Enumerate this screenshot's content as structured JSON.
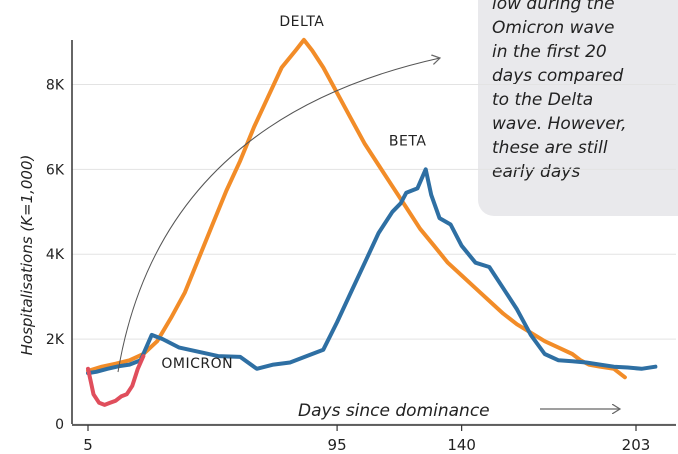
{
  "chart_data": {
    "type": "line",
    "ylabel": "Hospitalisations (K=1,000)",
    "xlabel": "Days since dominance",
    "ylim": [
      0,
      9000
    ],
    "yticks": [
      0,
      2000,
      4000,
      6000,
      8000
    ],
    "ytick_labels": [
      "0",
      "2K",
      "4K",
      "6K",
      "8K"
    ],
    "xticks": [
      5,
      95,
      140,
      203
    ],
    "grid": true,
    "callout_lines": [
      "low during the",
      "Omicron wave",
      "in the first 20",
      "days compared",
      "to the Delta",
      "wave.  However,",
      "these are still",
      "early days"
    ],
    "series": [
      {
        "name": "DELTA",
        "color": "#f28c28",
        "points": [
          [
            5,
            1250
          ],
          [
            10,
            1350
          ],
          [
            15,
            1420
          ],
          [
            20,
            1500
          ],
          [
            25,
            1650
          ],
          [
            30,
            1950
          ],
          [
            35,
            2500
          ],
          [
            40,
            3100
          ],
          [
            45,
            3900
          ],
          [
            50,
            4700
          ],
          [
            55,
            5500
          ],
          [
            60,
            6200
          ],
          [
            65,
            7000
          ],
          [
            70,
            7700
          ],
          [
            75,
            8400
          ],
          [
            80,
            8800
          ],
          [
            83,
            9050
          ],
          [
            86,
            8800
          ],
          [
            90,
            8400
          ],
          [
            95,
            7800
          ],
          [
            100,
            7200
          ],
          [
            105,
            6600
          ],
          [
            110,
            6100
          ],
          [
            115,
            5600
          ],
          [
            120,
            5100
          ],
          [
            125,
            4600
          ],
          [
            130,
            4200
          ],
          [
            135,
            3800
          ],
          [
            140,
            3500
          ],
          [
            145,
            3200
          ],
          [
            150,
            2900
          ],
          [
            155,
            2600
          ],
          [
            160,
            2350
          ],
          [
            165,
            2150
          ],
          [
            170,
            1950
          ],
          [
            175,
            1800
          ],
          [
            180,
            1650
          ],
          [
            183,
            1500
          ],
          [
            186,
            1400
          ],
          [
            190,
            1350
          ],
          [
            195,
            1300
          ],
          [
            199,
            1100
          ]
        ]
      },
      {
        "name": "BETA",
        "color": "#2e6fa3",
        "points": [
          [
            5,
            1200
          ],
          [
            8,
            1230
          ],
          [
            12,
            1300
          ],
          [
            16,
            1360
          ],
          [
            20,
            1400
          ],
          [
            24,
            1500
          ],
          [
            28,
            2100
          ],
          [
            32,
            2000
          ],
          [
            38,
            1800
          ],
          [
            45,
            1700
          ],
          [
            52,
            1600
          ],
          [
            60,
            1580
          ],
          [
            66,
            1300
          ],
          [
            72,
            1400
          ],
          [
            78,
            1450
          ],
          [
            84,
            1600
          ],
          [
            90,
            1750
          ],
          [
            95,
            2400
          ],
          [
            100,
            3100
          ],
          [
            105,
            3800
          ],
          [
            110,
            4500
          ],
          [
            115,
            5000
          ],
          [
            118,
            5200
          ],
          [
            120,
            5450
          ],
          [
            124,
            5550
          ],
          [
            127,
            6000
          ],
          [
            129,
            5400
          ],
          [
            132,
            4850
          ],
          [
            136,
            4700
          ],
          [
            140,
            4200
          ],
          [
            145,
            3800
          ],
          [
            150,
            3700
          ],
          [
            155,
            3200
          ],
          [
            160,
            2700
          ],
          [
            165,
            2100
          ],
          [
            170,
            1650
          ],
          [
            175,
            1500
          ],
          [
            180,
            1480
          ],
          [
            185,
            1450
          ],
          [
            190,
            1400
          ],
          [
            195,
            1350
          ],
          [
            200,
            1330
          ],
          [
            205,
            1300
          ],
          [
            210,
            1350
          ]
        ]
      },
      {
        "name": "OMICRON",
        "color": "#e04e5c",
        "points": [
          [
            5,
            1300
          ],
          [
            6,
            1000
          ],
          [
            7,
            700
          ],
          [
            9,
            500
          ],
          [
            11,
            450
          ],
          [
            13,
            500
          ],
          [
            15,
            550
          ],
          [
            17,
            650
          ],
          [
            19,
            700
          ],
          [
            21,
            900
          ],
          [
            23,
            1300
          ],
          [
            25,
            1600
          ]
        ]
      }
    ]
  }
}
